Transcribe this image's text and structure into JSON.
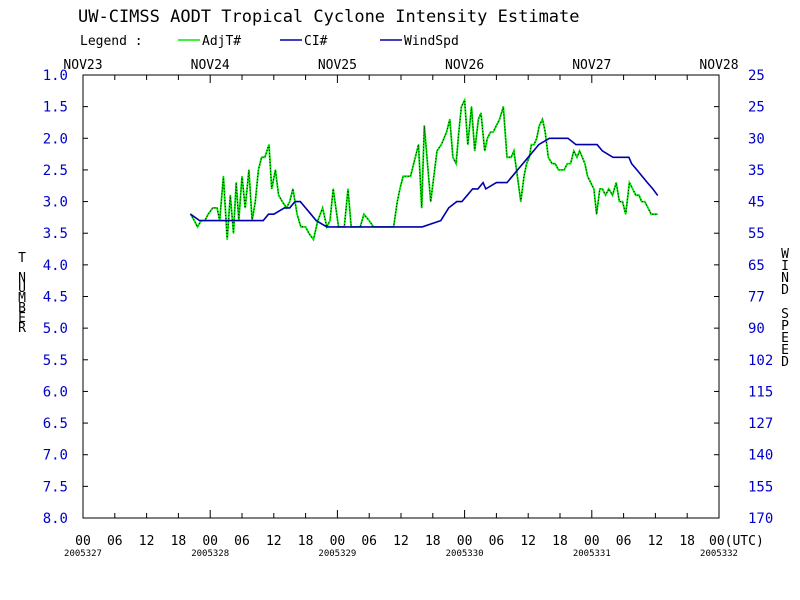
{
  "chart_data": {
    "type": "line",
    "title": "UW-CIMSS AODT Tropical Cyclone Intensity Estimate",
    "legend": {
      "label": "Legend :",
      "entries": [
        {
          "name": "AdjT#",
          "color": "#00ee00"
        },
        {
          "name": "CI#",
          "color": "#0000aa"
        },
        {
          "name": "WindSpd",
          "color": "#0000aa"
        }
      ]
    },
    "top_dates": [
      "NOV23",
      "NOV24",
      "NOV25",
      "NOV26",
      "NOV27",
      "NOV28"
    ],
    "x_tick_labels": [
      "00",
      "06",
      "12",
      "18",
      "00",
      "06",
      "12",
      "18",
      "00",
      "06",
      "12",
      "18",
      "00",
      "06",
      "12",
      "18",
      "00",
      "06",
      "12",
      "18",
      "00(UTC)"
    ],
    "x_date_labels": [
      "2005327",
      "2005328",
      "2005329",
      "2005330",
      "2005331",
      "2005332"
    ],
    "x_range_hours": [
      0,
      120
    ],
    "ylabel_left": "T NUMBER",
    "ylabel_right": "WIND SPEED",
    "ylim": [
      1.0,
      8.0
    ],
    "y_ticks_left": [
      "1.0",
      "1.5",
      "2.0",
      "2.5",
      "3.0",
      "3.5",
      "4.0",
      "4.5",
      "5.0",
      "5.5",
      "6.0",
      "6.5",
      "7.0",
      "7.5",
      "8.0"
    ],
    "y_ticks_right": [
      "25",
      "25",
      "30",
      "35",
      "45",
      "55",
      "65",
      "77",
      "90",
      "102",
      "115",
      "127",
      "140",
      "155",
      "170"
    ],
    "series": [
      {
        "name": "AdjT#",
        "color": "#00ee00",
        "x": [
          20.3,
          21.0,
          21.6,
          22.3,
          23.0,
          23.6,
          24.5,
          25.3,
          25.8,
          26.5,
          27.2,
          27.8,
          28.4,
          28.9,
          29.4,
          30.0,
          30.6,
          31.3,
          31.9,
          32.5,
          33.1,
          33.7,
          34.3,
          35.1,
          35.6,
          36.3,
          36.9,
          37.6,
          38.4,
          39.0,
          39.6,
          40.4,
          41.1,
          42.0,
          42.6,
          43.5,
          44.3,
          45.2,
          46.0,
          46.6,
          47.2,
          48.2,
          49.3,
          50.0,
          50.6,
          51.4,
          52.3,
          53.0,
          54.0,
          54.8,
          55.2,
          55.8,
          56.4,
          57.4,
          58.6,
          59.3,
          59.8,
          60.4,
          61.8,
          62.7,
          63.3,
          63.9,
          64.4,
          65.6,
          66.8,
          67.6,
          68.6,
          69.2,
          69.8,
          70.4,
          70.9,
          71.4,
          72.0,
          72.6,
          73.3,
          73.9,
          74.6,
          75.1,
          75.8,
          76.3,
          76.9,
          77.4,
          78.0,
          78.6,
          79.3,
          80.0,
          80.8,
          81.3,
          81.8,
          82.6,
          83.2,
          83.7,
          84.2,
          84.6,
          85.1,
          85.6,
          86.1,
          86.7,
          87.2,
          87.8,
          88.5,
          89.1,
          89.7,
          90.2,
          90.8,
          91.4,
          92.0,
          92.6,
          93.2,
          93.7,
          94.2,
          94.7,
          95.2,
          95.8,
          96.4,
          96.9,
          97.5,
          98.0,
          98.6,
          99.2,
          99.9,
          100.6,
          101.2,
          101.8,
          102.4,
          103.1,
          103.7,
          104.3,
          104.9,
          105.4,
          106.0,
          106.6,
          107.2,
          107.8,
          108.4
        ],
        "values": [
          3.2,
          3.3,
          3.4,
          3.3,
          3.3,
          3.2,
          3.1,
          3.1,
          3.3,
          2.6,
          3.6,
          2.9,
          3.5,
          2.7,
          3.3,
          2.6,
          3.1,
          2.5,
          3.3,
          3.0,
          2.5,
          2.3,
          2.3,
          2.1,
          2.8,
          2.5,
          2.9,
          3.0,
          3.1,
          3.0,
          2.8,
          3.2,
          3.4,
          3.4,
          3.5,
          3.6,
          3.3,
          3.1,
          3.4,
          3.3,
          2.8,
          3.4,
          3.4,
          2.8,
          3.4,
          3.4,
          3.4,
          3.2,
          3.3,
          3.4,
          3.4,
          3.4,
          3.4,
          3.4,
          3.4,
          3.0,
          2.8,
          2.6,
          2.6,
          2.3,
          2.1,
          3.1,
          1.8,
          3.0,
          2.2,
          2.1,
          1.9,
          1.7,
          2.3,
          2.4,
          1.9,
          1.5,
          1.4,
          2.1,
          1.5,
          2.2,
          1.7,
          1.6,
          2.2,
          2.0,
          1.9,
          1.9,
          1.8,
          1.7,
          1.5,
          2.3,
          2.3,
          2.2,
          2.5,
          3.0,
          2.6,
          2.4,
          2.3,
          2.1,
          2.1,
          2.0,
          1.8,
          1.7,
          1.9,
          2.3,
          2.4,
          2.4,
          2.5,
          2.5,
          2.5,
          2.4,
          2.4,
          2.2,
          2.3,
          2.2,
          2.3,
          2.4,
          2.6,
          2.7,
          2.8,
          3.2,
          2.8,
          2.8,
          2.9,
          2.8,
          2.9,
          2.7,
          3.0,
          3.0,
          3.2,
          2.7,
          2.8,
          2.9,
          2.9,
          3.0,
          3.0,
          3.1,
          3.2,
          3.2,
          3.2
        ],
        "note_marker": "dotted overlay"
      },
      {
        "name": "CI#",
        "color": "#0000aa",
        "x": [
          20.3,
          22.0,
          23.5,
          26.0,
          30.0,
          32.5,
          34.0,
          35.0,
          36.0,
          38.0,
          39.0,
          40.0,
          41.0,
          42.0,
          43.0,
          44.0,
          46.0,
          48.0,
          52.0,
          56.0,
          60.0,
          64.0,
          67.5,
          69.0,
          70.5,
          71.5,
          72.5,
          73.5,
          74.5,
          75.5,
          76.0,
          78.0,
          79.0,
          80.0,
          81.0,
          82.0,
          84.0,
          86.0,
          88.0,
          90.0,
          91.5,
          93.0,
          94.5,
          95.0,
          96.0,
          97.0,
          98.0,
          100.0,
          102.0,
          103.0,
          103.5,
          104.5,
          105.5,
          106.5,
          107.5,
          108.4
        ],
        "values": [
          3.2,
          3.3,
          3.3,
          3.3,
          3.3,
          3.3,
          3.3,
          3.2,
          3.2,
          3.1,
          3.1,
          3.0,
          3.0,
          3.1,
          3.2,
          3.3,
          3.4,
          3.4,
          3.4,
          3.4,
          3.4,
          3.4,
          3.3,
          3.1,
          3.0,
          3.0,
          2.9,
          2.8,
          2.8,
          2.7,
          2.8,
          2.7,
          2.7,
          2.7,
          2.6,
          2.5,
          2.3,
          2.1,
          2.0,
          2.0,
          2.0,
          2.1,
          2.1,
          2.1,
          2.1,
          2.1,
          2.2,
          2.3,
          2.3,
          2.3,
          2.4,
          2.5,
          2.6,
          2.7,
          2.8,
          2.9
        ]
      }
    ]
  }
}
